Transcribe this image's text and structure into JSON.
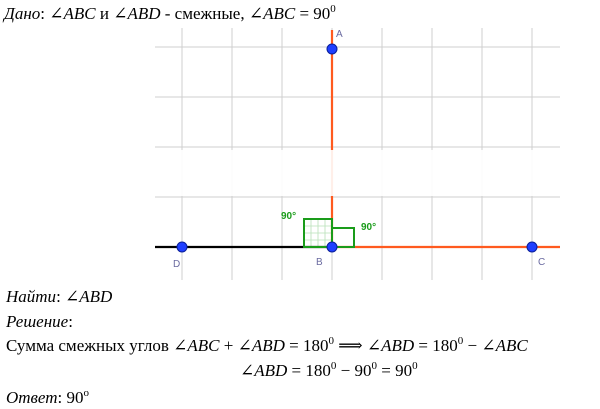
{
  "given": {
    "label": "Дано",
    "colon": ": ",
    "angle1": "∠ABC",
    "conj": " и ",
    "angle2": "∠ABD",
    "rest": " - смежные, ",
    "angle3": "∠ABC",
    "eq": " = 90",
    "deg": "0"
  },
  "figure": {
    "points": {
      "A": "A",
      "B": "B",
      "C": "C",
      "D": "D"
    },
    "right_angle_left": "90°",
    "right_angle_right": "90°",
    "colors": {
      "ray_orange": "#ff5a1f",
      "ray_black": "#000000",
      "point": "#1f3fff",
      "right_angle": "#1a9c1a",
      "grid": "#cfcfcf"
    }
  },
  "find": {
    "label": "Найти",
    "colon": ": ",
    "angle": "∠ABD"
  },
  "solution": {
    "label": "Решение",
    "colon": ":"
  },
  "sum": {
    "text": "Сумма смежных углов ",
    "a1": "∠ABC",
    "plus": " + ",
    "a2": "∠ABD",
    "eq": " = 180",
    "deg1": "0",
    "implies": " ⟹ ",
    "a3": "∠ABD",
    "eq2": " = 180",
    "deg2": "0",
    "minus": " − ",
    "a4": "∠ABC"
  },
  "calc": {
    "a": "∠ABD",
    "eq": " = 180",
    "deg1": "0",
    "minus": " − 90",
    "deg2": "0",
    "eq2": " = 90",
    "deg3": "0"
  },
  "answer": {
    "label": "Ответ",
    "colon": ": ",
    "value": "90",
    "deg": "o"
  }
}
